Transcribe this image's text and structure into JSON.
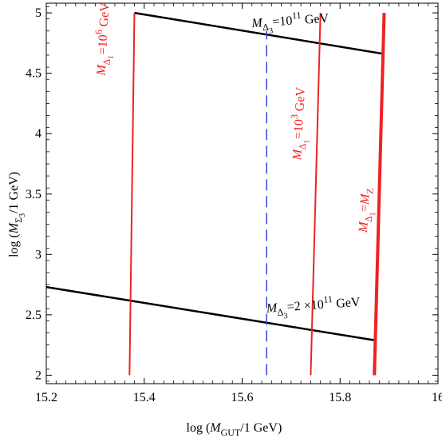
{
  "chart_data": {
    "type": "line",
    "title": "",
    "xlabel": {
      "pre": "log (",
      "sym": "M",
      "sub": "GUT",
      "post": "/1 GeV)"
    },
    "ylabel": {
      "pre": "log (",
      "sym": "M",
      "sub": "Σ",
      "subsub": "3",
      "post": "/1 GeV)"
    },
    "xlim": [
      15.2,
      16.0
    ],
    "ylim": [
      1.93,
      5.08
    ],
    "xticks": [
      "15.2",
      "15.4",
      "15.6",
      "15.8",
      "16"
    ],
    "yticks": [
      "2",
      "2.5",
      "3",
      "3.5",
      "4",
      "4.5",
      "5"
    ],
    "grid": false,
    "series": [
      {
        "style": "solid",
        "color": "#000000",
        "width": 2.5,
        "x": [
          15.38,
          15.89
        ],
        "y": [
          5.0,
          4.66
        ]
      },
      {
        "style": "solid",
        "color": "#000000",
        "width": 2.5,
        "x": [
          15.2,
          15.87
        ],
        "y": [
          2.73,
          2.29
        ]
      },
      {
        "style": "solid",
        "color": "#ee2222",
        "width": 2,
        "x": [
          15.37,
          15.38
        ],
        "y": [
          2.0,
          5.0
        ]
      },
      {
        "style": "solid",
        "color": "#ee2222",
        "width": 2,
        "x": [
          15.74,
          15.76
        ],
        "y": [
          2.0,
          5.0
        ]
      },
      {
        "style": "solid",
        "color": "#ee2222",
        "width": 4,
        "x": [
          15.87,
          15.89
        ],
        "y": [
          2.0,
          5.0
        ]
      },
      {
        "style": "dashed",
        "color": "#3344dd",
        "width": 1.5,
        "x": [
          15.65,
          15.65
        ],
        "y": [
          2.0,
          4.85
        ]
      }
    ],
    "annotations": [
      {
        "id": "a1",
        "color": "#000000",
        "x": 15.62,
        "y": 4.88,
        "rotate": -4,
        "parts": [
          {
            "t": "M",
            "italic": true
          },
          {
            "t": "Δ",
            "sub": true
          },
          {
            "t": "3",
            "subsub": true
          },
          {
            "t": "=10"
          },
          {
            "t": "11",
            "sup": true
          },
          {
            "t": " GeV"
          }
        ]
      },
      {
        "id": "a2",
        "color": "#000000",
        "x": 15.65,
        "y": 2.52,
        "rotate": -4,
        "parts": [
          {
            "t": "M",
            "italic": true
          },
          {
            "t": "Δ",
            "sub": true
          },
          {
            "t": "3",
            "subsub": true
          },
          {
            "t": "=2  ×10"
          },
          {
            "t": "11",
            "sup": true
          },
          {
            "t": " GeV"
          }
        ]
      },
      {
        "id": "a3",
        "color": "#ee2222",
        "x": 15.32,
        "y": 4.48,
        "rotate": -87,
        "parts": [
          {
            "t": "M",
            "italic": true
          },
          {
            "t": "Δ",
            "sub": true
          },
          {
            "t": "1",
            "subsub": true
          },
          {
            "t": "=10"
          },
          {
            "t": "6",
            "sup": true
          },
          {
            "t": " GeV"
          }
        ]
      },
      {
        "id": "a4",
        "color": "#ee2222",
        "x": 15.72,
        "y": 3.78,
        "rotate": -87,
        "parts": [
          {
            "t": "M",
            "italic": true
          },
          {
            "t": "Δ",
            "sub": true
          },
          {
            "t": "1",
            "subsub": true
          },
          {
            "t": "=10"
          },
          {
            "t": "3",
            "sup": true
          },
          {
            "t": " GeV"
          }
        ]
      },
      {
        "id": "a5",
        "color": "#ee2222",
        "x": 15.855,
        "y": 3.18,
        "rotate": -87,
        "parts": [
          {
            "t": "M",
            "italic": true
          },
          {
            "t": "Δ",
            "sub": true
          },
          {
            "t": "1",
            "subsub": true
          },
          {
            "t": "="
          },
          {
            "t": "M",
            "italic": true
          },
          {
            "t": "Z",
            "sub": true
          }
        ]
      }
    ]
  }
}
